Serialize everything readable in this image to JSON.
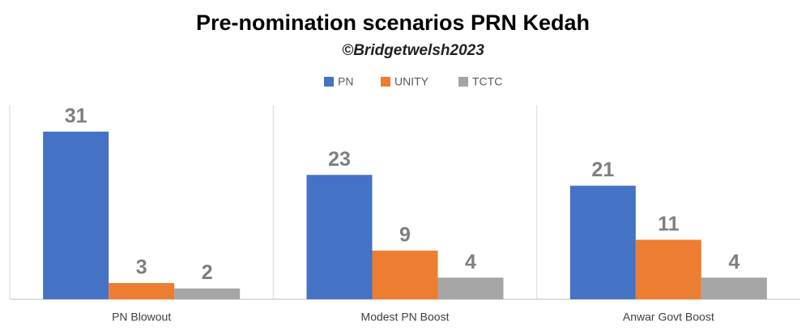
{
  "chart_data": {
    "type": "bar",
    "title": "Pre-nomination scenarios PRN Kedah",
    "subtitle": "©Bridgetwelsh2023",
    "categories": [
      "PN Blowout",
      "Modest PN Boost",
      "Anwar Govt Boost"
    ],
    "series": [
      {
        "name": "PN",
        "color": "#4472c4",
        "values": [
          31,
          23,
          21
        ]
      },
      {
        "name": "UNITY",
        "color": "#ed7d31",
        "values": [
          3,
          9,
          11
        ]
      },
      {
        "name": "TCTC",
        "color": "#a5a5a5",
        "values": [
          2,
          4,
          4
        ]
      }
    ],
    "ylim": [
      0,
      35
    ],
    "legend": "top"
  }
}
